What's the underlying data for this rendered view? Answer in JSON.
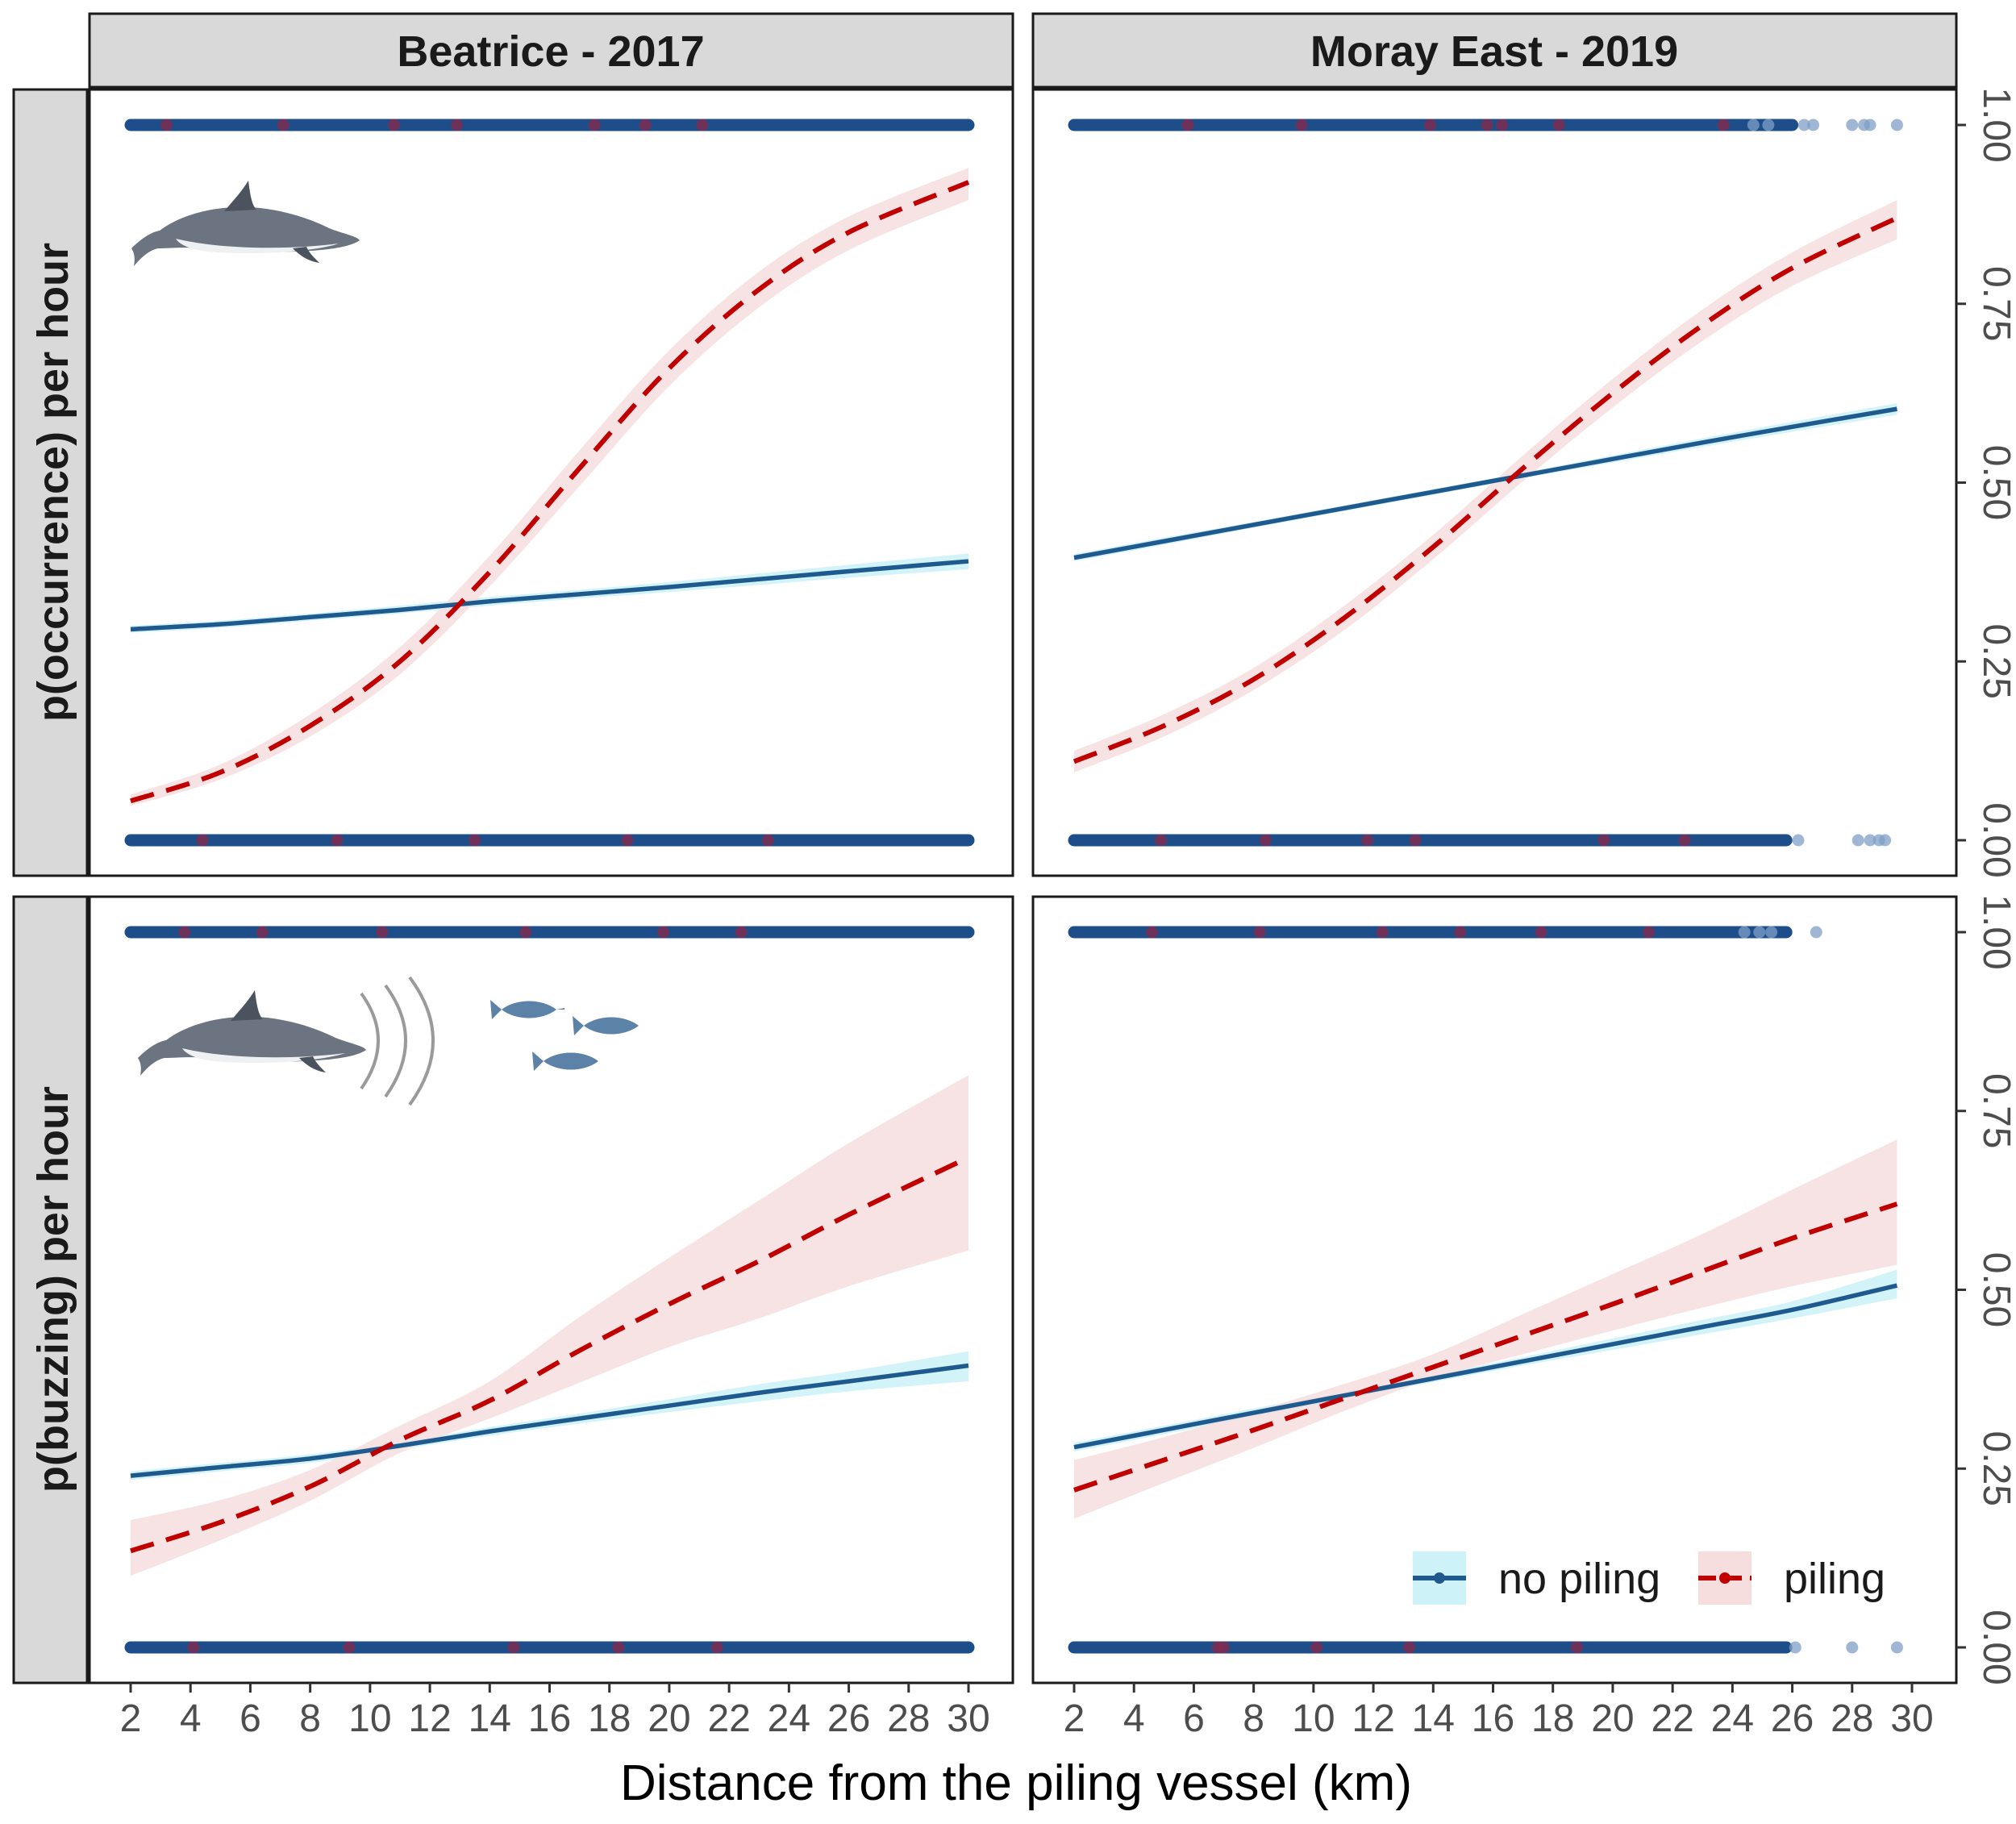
{
  "figure": {
    "x_axis_title": "Distance from the piling vessel (km)",
    "x_ticks": [
      "2",
      "4",
      "6",
      "8",
      "10",
      "12",
      "14",
      "16",
      "18",
      "20",
      "22",
      "24",
      "26",
      "28",
      "30"
    ],
    "y_ticks": [
      "0.00",
      "0.25",
      "0.50",
      "0.75",
      "1.00"
    ],
    "row_titles": [
      "p(occurrence) per hour",
      "p(buzzing) per hour"
    ],
    "column_titles": [
      "Beatrice - 2017",
      "Moray East - 2019"
    ],
    "legend": {
      "no_piling": {
        "label": "no piling",
        "color": "#1f5a8f",
        "band_color": "#cdf2f7"
      },
      "piling": {
        "label": "piling",
        "color": "#c00000",
        "band_color": "#f6dede"
      }
    },
    "icons": [
      "porpoise-icon",
      "sonar-arcs-icon",
      "fish-icon"
    ]
  },
  "chart_data": [
    {
      "type": "line",
      "title": "Beatrice - 2017",
      "ylabel": "p(occurrence) per hour",
      "xlabel": "Distance from the piling vessel (km)",
      "xlim": [
        0,
        32
      ],
      "ylim": [
        0,
        1
      ],
      "x": [
        2,
        5,
        8,
        11,
        14,
        17,
        20,
        23,
        26,
        30
      ],
      "series": [
        {
          "name": "no piling",
          "style": "solid",
          "y": [
            0.295,
            0.302,
            0.312,
            0.322,
            0.334,
            0.344,
            0.354,
            0.365,
            0.376,
            0.39
          ],
          "lower": [
            0.29,
            0.297,
            0.307,
            0.317,
            0.328,
            0.338,
            0.347,
            0.357,
            0.367,
            0.379
          ],
          "upper": [
            0.3,
            0.307,
            0.317,
            0.328,
            0.34,
            0.35,
            0.361,
            0.373,
            0.385,
            0.401
          ]
        },
        {
          "name": "piling",
          "style": "dashed",
          "y": [
            0.055,
            0.095,
            0.16,
            0.25,
            0.375,
            0.52,
            0.66,
            0.77,
            0.85,
            0.92
          ],
          "lower": [
            0.048,
            0.085,
            0.145,
            0.232,
            0.355,
            0.495,
            0.635,
            0.745,
            0.825,
            0.895
          ],
          "upper": [
            0.064,
            0.106,
            0.176,
            0.27,
            0.398,
            0.545,
            0.685,
            0.795,
            0.872,
            0.94
          ]
        }
      ],
      "raw_points": {
        "no piling": {
          "at_1": {
            "from": 2,
            "to": 30
          },
          "at_0": {
            "from": 2,
            "to": 30
          }
        },
        "piling": {
          "at_1": [
            3.2,
            7.1,
            10.8,
            12.9,
            17.5,
            19.2,
            21.1
          ],
          "at_0": [
            4.4,
            8.9,
            13.5,
            18.6,
            23.3
          ]
        }
      }
    },
    {
      "type": "line",
      "title": "Moray East - 2019",
      "ylabel": "p(occurrence) per hour",
      "xlabel": "Distance from the piling vessel (km)",
      "xlim": [
        0,
        32
      ],
      "ylim": [
        0,
        1
      ],
      "x": [
        2,
        5,
        8,
        11,
        14,
        17,
        20,
        23,
        26,
        29.5
      ],
      "series": [
        {
          "name": "no piling",
          "style": "solid",
          "y": [
            0.395,
            0.418,
            0.441,
            0.464,
            0.487,
            0.51,
            0.533,
            0.556,
            0.578,
            0.603
          ],
          "lower": [
            0.39,
            0.413,
            0.437,
            0.46,
            0.483,
            0.506,
            0.528,
            0.55,
            0.571,
            0.595
          ],
          "upper": [
            0.4,
            0.423,
            0.445,
            0.468,
            0.491,
            0.514,
            0.538,
            0.562,
            0.585,
            0.611
          ]
        },
        {
          "name": "piling",
          "style": "dashed",
          "y": [
            0.11,
            0.16,
            0.225,
            0.31,
            0.41,
            0.52,
            0.625,
            0.72,
            0.8,
            0.87
          ],
          "lower": [
            0.095,
            0.145,
            0.21,
            0.293,
            0.393,
            0.502,
            0.605,
            0.698,
            0.775,
            0.84
          ],
          "upper": [
            0.125,
            0.176,
            0.241,
            0.327,
            0.427,
            0.538,
            0.645,
            0.742,
            0.822,
            0.895
          ]
        }
      ],
      "raw_points": {
        "no piling": {
          "at_1": {
            "from": 2,
            "to": 26,
            "stragglers": [
              24.7,
              25.2,
              26.4,
              26.7,
              28.0,
              28.4,
              28.6,
              29.5
            ]
          },
          "at_0": {
            "from": 2,
            "to": 25.8,
            "stragglers": [
              26.2,
              28.2,
              28.6,
              28.9,
              29.1
            ]
          }
        },
        "piling": {
          "at_1": [
            5.8,
            9.6,
            13.9,
            15.8,
            16.3,
            18.2,
            23.7
          ],
          "at_0": [
            4.9,
            8.4,
            11.8,
            13.4,
            19.7,
            22.4
          ]
        }
      }
    },
    {
      "type": "line",
      "title": "Beatrice - 2017",
      "ylabel": "p(buzzing) per hour",
      "xlabel": "Distance from the piling vessel (km)",
      "xlim": [
        0,
        32
      ],
      "ylim": [
        0,
        1
      ],
      "x": [
        2,
        5,
        8,
        11,
        14,
        17,
        20,
        23,
        26,
        30
      ],
      "series": [
        {
          "name": "no piling",
          "style": "solid",
          "y": [
            0.24,
            0.252,
            0.264,
            0.282,
            0.302,
            0.32,
            0.338,
            0.356,
            0.372,
            0.394
          ],
          "lower": [
            0.234,
            0.246,
            0.258,
            0.277,
            0.296,
            0.313,
            0.329,
            0.344,
            0.358,
            0.372
          ],
          "upper": [
            0.246,
            0.258,
            0.27,
            0.287,
            0.308,
            0.327,
            0.347,
            0.368,
            0.386,
            0.414
          ]
        },
        {
          "name": "piling",
          "style": "dashed",
          "y": [
            0.135,
            0.175,
            0.225,
            0.29,
            0.345,
            0.415,
            0.48,
            0.54,
            0.605,
            0.685
          ],
          "lower": [
            0.1,
            0.15,
            0.205,
            0.272,
            0.32,
            0.37,
            0.42,
            0.46,
            0.505,
            0.555
          ],
          "upper": [
            0.178,
            0.206,
            0.248,
            0.31,
            0.372,
            0.462,
            0.545,
            0.625,
            0.705,
            0.8
          ]
        }
      ],
      "raw_points": {
        "no piling": {
          "at_1": {
            "from": 2,
            "to": 30
          },
          "at_0": {
            "from": 2,
            "to": 30
          }
        },
        "piling": {
          "at_1": [
            3.8,
            6.4,
            10.4,
            15.2,
            19.8,
            22.4
          ],
          "at_0": [
            4.1,
            9.3,
            14.8,
            18.3,
            21.6
          ]
        }
      }
    },
    {
      "type": "line",
      "title": "Moray East - 2019",
      "ylabel": "p(buzzing) per hour",
      "xlabel": "Distance from the piling vessel (km)",
      "xlim": [
        0,
        32
      ],
      "ylim": [
        0,
        1
      ],
      "x": [
        2,
        5,
        8,
        11,
        14,
        17,
        20,
        23,
        26,
        29.5
      ],
      "series": [
        {
          "name": "no piling",
          "style": "solid",
          "y": [
            0.28,
            0.304,
            0.328,
            0.352,
            0.376,
            0.4,
            0.424,
            0.448,
            0.472,
            0.506
          ],
          "lower": [
            0.274,
            0.298,
            0.322,
            0.347,
            0.371,
            0.394,
            0.416,
            0.438,
            0.46,
            0.488
          ],
          "upper": [
            0.286,
            0.31,
            0.334,
            0.357,
            0.381,
            0.406,
            0.432,
            0.458,
            0.484,
            0.528
          ]
        },
        {
          "name": "piling",
          "style": "dashed",
          "y": [
            0.22,
            0.262,
            0.304,
            0.348,
            0.392,
            0.436,
            0.48,
            0.526,
            0.572,
            0.62
          ],
          "lower": [
            0.18,
            0.23,
            0.279,
            0.33,
            0.376,
            0.41,
            0.443,
            0.475,
            0.505,
            0.535
          ],
          "upper": [
            0.262,
            0.294,
            0.33,
            0.368,
            0.41,
            0.466,
            0.522,
            0.578,
            0.64,
            0.71
          ]
        }
      ],
      "raw_points": {
        "no piling": {
          "at_1": {
            "from": 2,
            "to": 25.8,
            "stragglers": [
              24.4,
              24.9,
              25.3,
              26.8
            ]
          },
          "at_0": {
            "from": 2,
            "to": 25.8,
            "stragglers": [
              26.1,
              28.0,
              29.5
            ]
          }
        },
        "piling": {
          "at_1": [
            4.6,
            8.2,
            12.3,
            14.9,
            17.6,
            21.2
          ],
          "at_0": [
            6.8,
            7.0,
            10.1,
            13.2,
            18.8
          ]
        }
      }
    }
  ]
}
